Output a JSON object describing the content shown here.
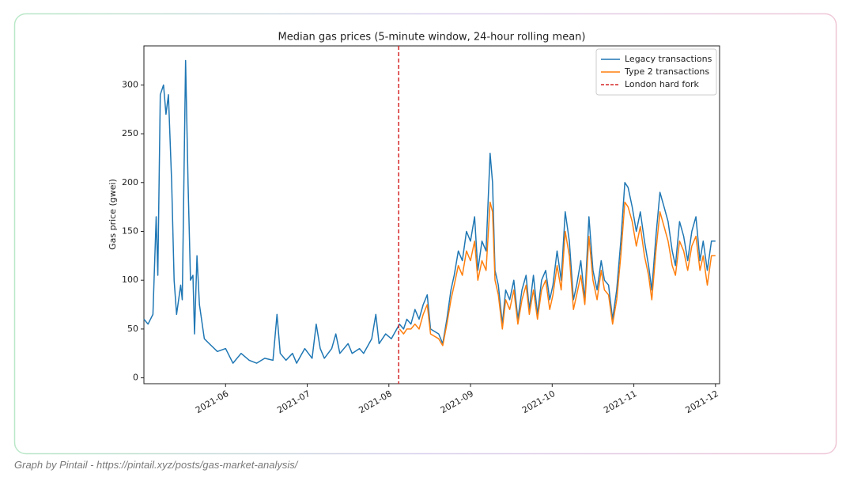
{
  "chart_data": {
    "type": "line",
    "title": "Median gas prices (5-minute window, 24-hour rolling mean)",
    "y_label": "Gas price (gwei)",
    "x": [
      5.0,
      5.05,
      5.11,
      5.15,
      5.17,
      5.2,
      5.24,
      5.27,
      5.3,
      5.34,
      5.37,
      5.4,
      5.45,
      5.47,
      5.51,
      5.54,
      5.57,
      5.6,
      5.62,
      5.65,
      5.68,
      5.74,
      5.8,
      5.9,
      6.0,
      6.09,
      6.19,
      6.29,
      6.38,
      6.48,
      6.58,
      6.63,
      6.67,
      6.74,
      6.82,
      6.87,
      6.97,
      7.06,
      7.11,
      7.16,
      7.21,
      7.3,
      7.35,
      7.4,
      7.5,
      7.55,
      7.64,
      7.69,
      7.79,
      7.84,
      7.88,
      7.96,
      8.03,
      8.13,
      8.18,
      8.22,
      8.27,
      8.32,
      8.37,
      8.42,
      8.47,
      8.51,
      8.61,
      8.66,
      8.71,
      8.76,
      8.8,
      8.85,
      8.9,
      8.95,
      9.0,
      9.05,
      9.09,
      9.14,
      9.19,
      9.24,
      9.27,
      9.3,
      9.34,
      9.39,
      9.43,
      9.48,
      9.53,
      9.58,
      9.63,
      9.68,
      9.72,
      9.77,
      9.82,
      9.87,
      9.92,
      9.97,
      10.01,
      10.06,
      10.11,
      10.16,
      10.21,
      10.26,
      10.3,
      10.35,
      10.4,
      10.45,
      10.5,
      10.55,
      10.6,
      10.64,
      10.69,
      10.74,
      10.79,
      10.84,
      10.89,
      10.93,
      10.98,
      11.03,
      11.08,
      11.13,
      11.18,
      11.22,
      11.27,
      11.32,
      11.37,
      11.42,
      11.47,
      11.51,
      11.56,
      11.61,
      11.66,
      11.71,
      11.76,
      11.81,
      11.85,
      11.9,
      11.95,
      12.0
    ],
    "series": [
      {
        "name": "Legacy transactions",
        "color": "#1f77b4",
        "values": [
          60,
          55,
          65,
          165,
          105,
          290,
          300,
          270,
          290,
          200,
          100,
          65,
          95,
          80,
          325,
          200,
          100,
          105,
          45,
          125,
          75,
          40,
          35,
          27,
          30,
          15,
          25,
          18,
          15,
          20,
          18,
          65,
          25,
          18,
          25,
          15,
          30,
          20,
          55,
          30,
          20,
          30,
          45,
          25,
          35,
          25,
          30,
          25,
          40,
          65,
          35,
          45,
          40,
          55,
          50,
          60,
          55,
          70,
          60,
          75,
          85,
          50,
          45,
          35,
          60,
          90,
          105,
          130,
          120,
          150,
          140,
          165,
          110,
          140,
          130,
          230,
          200,
          110,
          95,
          55,
          90,
          80,
          100,
          60,
          90,
          105,
          70,
          105,
          65,
          100,
          110,
          80,
          95,
          130,
          100,
          170,
          140,
          80,
          95,
          120,
          80,
          165,
          110,
          90,
          120,
          100,
          95,
          60,
          90,
          140,
          200,
          195,
          175,
          150,
          170,
          140,
          115,
          90,
          145,
          190,
          175,
          160,
          130,
          115,
          160,
          145,
          120,
          150,
          165,
          120,
          140,
          110,
          140,
          140
        ]
      },
      {
        "name": "Type 2 transactions",
        "color": "#ff7f0e",
        "values": [
          null,
          null,
          null,
          null,
          null,
          null,
          null,
          null,
          null,
          null,
          null,
          null,
          null,
          null,
          null,
          null,
          null,
          null,
          null,
          null,
          null,
          null,
          null,
          null,
          null,
          null,
          null,
          null,
          null,
          null,
          null,
          null,
          null,
          null,
          null,
          null,
          null,
          null,
          null,
          null,
          null,
          null,
          null,
          null,
          null,
          null,
          null,
          null,
          null,
          null,
          null,
          null,
          null,
          50,
          45,
          50,
          50,
          55,
          50,
          65,
          75,
          45,
          40,
          33,
          55,
          80,
          95,
          115,
          105,
          130,
          120,
          140,
          100,
          120,
          110,
          180,
          170,
          100,
          85,
          50,
          80,
          70,
          90,
          55,
          80,
          95,
          65,
          90,
          60,
          90,
          100,
          70,
          85,
          115,
          90,
          150,
          125,
          70,
          85,
          105,
          75,
          145,
          100,
          80,
          110,
          90,
          85,
          55,
          80,
          125,
          180,
          175,
          160,
          135,
          155,
          125,
          105,
          80,
          130,
          170,
          155,
          140,
          115,
          105,
          140,
          130,
          110,
          135,
          145,
          110,
          125,
          95,
          125,
          125
        ]
      }
    ],
    "vlines": [
      {
        "x": 8.12,
        "name": "London hard fork",
        "color": "#d62728",
        "style": "dashed"
      }
    ],
    "xlim": [
      5.0,
      12.05
    ],
    "xticks": [
      {
        "value": 6,
        "label": "2021-06"
      },
      {
        "value": 7,
        "label": "2021-07"
      },
      {
        "value": 8,
        "label": "2021-08"
      },
      {
        "value": 9,
        "label": "2021-09"
      },
      {
        "value": 10,
        "label": "2021-10"
      },
      {
        "value": 11,
        "label": "2021-11"
      },
      {
        "value": 12,
        "label": "2021-12"
      }
    ],
    "ylim": [
      -6,
      340
    ],
    "yticks": [
      0,
      50,
      100,
      150,
      200,
      250,
      300
    ],
    "legend": "upper right",
    "grid": false
  },
  "caption": "Graph by Pintail - https://pintail.xyz/posts/gas-market-analysis/"
}
